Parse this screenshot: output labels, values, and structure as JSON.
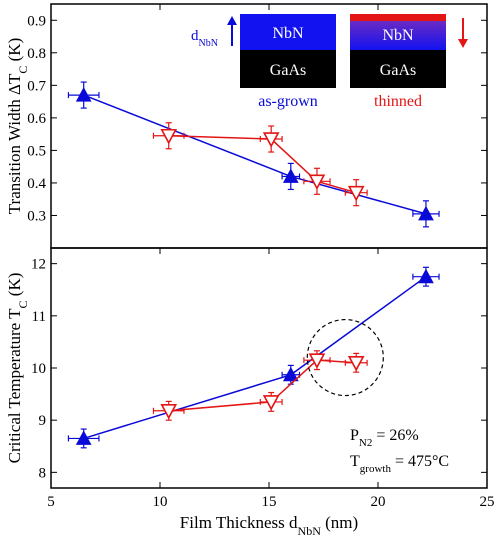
{
  "colors": {
    "as_grown": "#0a0ad8",
    "thinned": "#e41515",
    "ink": "#000000",
    "nbn_box": "#1212f0",
    "gaas_box": "#000000"
  },
  "chart_data": [
    {
      "type": "line",
      "ylabel": "Transition Width ΔT",
      "ylabel_sub": "C",
      "ylabel_unit": " (K)",
      "ylim": [
        0.2,
        0.95
      ],
      "yticks": [
        "0.3",
        "0.4",
        "0.5",
        "0.6",
        "0.7",
        "0.8",
        "0.9"
      ],
      "ytick_values": [
        0.3,
        0.4,
        0.5,
        0.6,
        0.7,
        0.8,
        0.9
      ],
      "xlim": [
        5,
        25
      ],
      "series": [
        {
          "key": "as_grown",
          "marker": "filled-triangle-up",
          "x": [
            6.5,
            16.0,
            22.2
          ],
          "y": [
            0.67,
            0.42,
            0.305
          ],
          "xerr": [
            0.7,
            0.4,
            0.6
          ],
          "yerr": [
            0.04,
            0.04,
            0.04
          ]
        },
        {
          "key": "thinned",
          "marker": "open-triangle-down",
          "x": [
            10.4,
            15.1,
            17.2,
            19.0
          ],
          "y": [
            0.545,
            0.535,
            0.405,
            0.37
          ],
          "xerr": [
            0.7,
            0.5,
            0.6,
            0.5
          ],
          "yerr": [
            0.04,
            0.04,
            0.04,
            0.04
          ]
        }
      ],
      "inset": {
        "as_grown_top": "NbN",
        "as_grown_bottom": "GaAs",
        "as_grown_caption": "as-grown",
        "thinned_top": "NbN",
        "thinned_bottom": "GaAs",
        "thinned_caption": "thinned",
        "arrow_label": "d",
        "arrow_label_sub": "NbN"
      }
    },
    {
      "type": "line",
      "ylabel": "Critical Temperature T",
      "ylabel_sub": "C",
      "ylabel_unit": " (K)",
      "ylim": [
        7.7,
        12.3
      ],
      "yticks": [
        "8",
        "9",
        "10",
        "11",
        "12"
      ],
      "ytick_values": [
        8,
        9,
        10,
        11,
        12
      ],
      "xlabel": "Film Thickness d",
      "xlabel_sub": "NbN",
      "xlabel_unit": " (nm)",
      "xlim": [
        5,
        25
      ],
      "xticks": [
        "5",
        "10",
        "15",
        "20",
        "25"
      ],
      "xtick_values": [
        5,
        10,
        15,
        20,
        25
      ],
      "series": [
        {
          "key": "as_grown",
          "marker": "filled-triangle-up",
          "x": [
            6.5,
            16.0,
            22.2
          ],
          "y": [
            8.65,
            9.87,
            11.75
          ],
          "xerr": [
            0.7,
            0.4,
            0.6
          ],
          "yerr": [
            0.18,
            0.18,
            0.18
          ]
        },
        {
          "key": "thinned",
          "marker": "open-triangle-down",
          "x": [
            10.4,
            15.1,
            17.2,
            19.0
          ],
          "y": [
            9.18,
            9.35,
            10.15,
            10.1
          ],
          "xerr": [
            0.7,
            0.5,
            0.6,
            0.5
          ],
          "yerr": [
            0.18,
            0.18,
            0.18,
            0.18
          ]
        }
      ],
      "circle_center": {
        "x": 18.5,
        "y": 10.2
      },
      "annotation": {
        "line1_main": "P",
        "line1_sub": "N2",
        "line1_rest": " = 26%",
        "line2_main": "T",
        "line2_sub": "growth",
        "line2_rest": " = 475°C"
      }
    }
  ]
}
